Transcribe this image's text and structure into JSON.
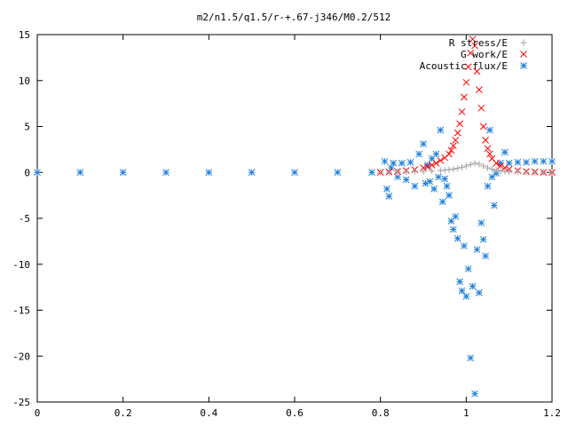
{
  "chart_data": {
    "type": "scatter",
    "title": "m2/n1.5/q1.5/r-+.67-j346/M0.2/512",
    "xlabel": "",
    "ylabel": "",
    "xlim": [
      0,
      1.2
    ],
    "ylim": [
      -25,
      15
    ],
    "x_ticks": [
      "0",
      "0.2",
      "0.4",
      "0.6",
      "0.8",
      "1",
      "1.2"
    ],
    "y_ticks": [
      "15",
      "10",
      "5",
      "0",
      "-5",
      "-10",
      "-15",
      "-20",
      "-25"
    ],
    "grid": false,
    "legend_position": "top-right",
    "series": [
      {
        "name": "R stress/E",
        "marker": "plus",
        "color": "#a0a0a0",
        "x": [
          0.8,
          0.82,
          0.84,
          0.86,
          0.88,
          0.9,
          0.92,
          0.94,
          0.95,
          0.96,
          0.97,
          0.98,
          0.99,
          1.0,
          1.01,
          1.02,
          1.03,
          1.04,
          1.05,
          1.06,
          1.07,
          1.08,
          1.09,
          1.1,
          1.12,
          1.14,
          1.16,
          1.18,
          1.2
        ],
        "y": [
          0.0,
          0.0,
          0.05,
          0.05,
          0.1,
          0.1,
          0.15,
          0.2,
          0.25,
          0.3,
          0.35,
          0.45,
          0.55,
          0.7,
          0.85,
          1.0,
          0.9,
          0.7,
          0.5,
          0.35,
          0.25,
          0.15,
          0.1,
          0.05,
          0.05,
          0.0,
          0.0,
          0.0,
          0.0
        ]
      },
      {
        "name": "G work/E",
        "marker": "cross",
        "color": "#ff0000",
        "x": [
          0.8,
          0.82,
          0.84,
          0.86,
          0.88,
          0.9,
          0.91,
          0.92,
          0.93,
          0.94,
          0.95,
          0.96,
          0.965,
          0.97,
          0.975,
          0.98,
          0.985,
          0.99,
          0.995,
          1.0,
          1.005,
          1.01,
          1.015,
          1.02,
          1.025,
          1.03,
          1.035,
          1.04,
          1.045,
          1.05,
          1.055,
          1.06,
          1.07,
          1.08,
          1.09,
          1.1,
          1.12,
          1.14,
          1.16,
          1.18,
          1.2
        ],
        "y": [
          0.0,
          0.05,
          0.1,
          0.2,
          0.3,
          0.5,
          0.6,
          0.8,
          1.0,
          1.3,
          1.6,
          2.0,
          2.4,
          2.9,
          3.5,
          4.3,
          5.3,
          6.6,
          8.2,
          9.8,
          11.5,
          13.0,
          14.5,
          13.8,
          11.0,
          9.0,
          7.0,
          5.0,
          3.5,
          2.6,
          2.0,
          1.5,
          1.0,
          0.7,
          0.5,
          0.35,
          0.2,
          0.1,
          0.05,
          0.0,
          0.0
        ]
      },
      {
        "name": "Acoustic flux/E",
        "marker": "star",
        "color": "#1f7fd8",
        "x": [
          0.0,
          0.1,
          0.2,
          0.3,
          0.4,
          0.5,
          0.6,
          0.7,
          0.78,
          0.81,
          0.815,
          0.82,
          0.825,
          0.83,
          0.84,
          0.85,
          0.86,
          0.87,
          0.88,
          0.89,
          0.9,
          0.905,
          0.91,
          0.915,
          0.92,
          0.925,
          0.93,
          0.935,
          0.94,
          0.945,
          0.95,
          0.955,
          0.96,
          0.965,
          0.97,
          0.975,
          0.98,
          0.985,
          0.99,
          0.995,
          1.0,
          1.005,
          1.01,
          1.015,
          1.02,
          1.025,
          1.03,
          1.035,
          1.04,
          1.045,
          1.05,
          1.055,
          1.06,
          1.065,
          1.07,
          1.08,
          1.09,
          1.1,
          1.12,
          1.14,
          1.16,
          1.18,
          1.2
        ],
        "y": [
          0.0,
          0.0,
          0.0,
          0.0,
          0.0,
          0.0,
          0.0,
          0.0,
          0.0,
          1.2,
          -1.8,
          -2.6,
          0.5,
          1.0,
          -0.5,
          1.0,
          -0.8,
          1.1,
          -1.5,
          2.0,
          3.1,
          -1.2,
          0.8,
          -1.0,
          1.5,
          -1.8,
          2.0,
          -0.5,
          4.6,
          -3.2,
          -0.7,
          -1.5,
          -2.5,
          -5.3,
          -6.2,
          -4.8,
          -7.2,
          -11.9,
          -12.9,
          -8.0,
          -13.5,
          -10.5,
          -20.2,
          -12.4,
          -24.1,
          -8.4,
          -13.1,
          -5.5,
          -7.3,
          -9.1,
          -1.5,
          4.6,
          -0.5,
          -3.6,
          -0.1,
          1.0,
          2.2,
          1.0,
          1.1,
          1.1,
          1.2,
          1.2,
          1.2
        ]
      }
    ]
  }
}
